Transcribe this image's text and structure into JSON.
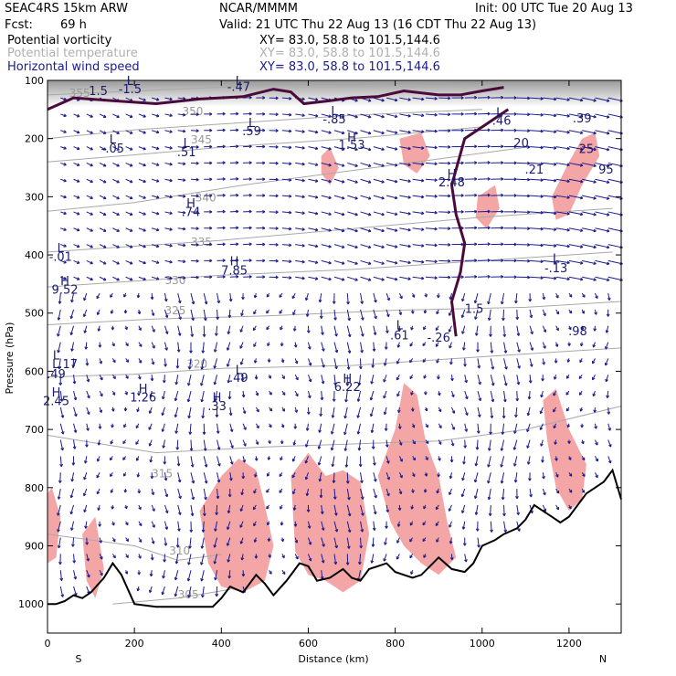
{
  "header": {
    "model": "SEAC4RS 15km ARW",
    "org": "NCAR/MMMM",
    "init": "Init: 00 UTC Tue 20 Aug 13",
    "fcst_label": "Fcst:",
    "fcst_value": "69 h",
    "valid": "Valid: 21 UTC Thu 22 Aug 13 (16 CDT Thu 22 Aug 13)"
  },
  "fields": [
    {
      "name": "Potential vorticity",
      "xy": "XY=  83.0, 58.8 to 101.5,144.6",
      "color": "#000000"
    },
    {
      "name": "Potential temperature",
      "xy": "XY=  83.0, 58.8 to 101.5,144.6",
      "color": "#b0b0b0"
    },
    {
      "name": "Horizontal wind speed",
      "xy": "XY=  83.0, 58.8 to 101.5,144.6",
      "color": "#1a1a8e"
    }
  ],
  "colors": {
    "pv_shade": "#f4a6a6",
    "wind": "#1a1a8e",
    "theta": "#a8a8a8",
    "pv_contour": "#4a0a3a",
    "terrain": "#000000"
  },
  "chart_data": {
    "type": "cross-section",
    "xlabel": "Distance (km)",
    "ylabel": "Pressure (hPa)",
    "x_ticks": [
      0,
      200,
      400,
      600,
      800,
      1000,
      1200
    ],
    "y_ticks": [
      100,
      200,
      300,
      400,
      500,
      600,
      700,
      800,
      900,
      1000
    ],
    "xlim": [
      0,
      1320
    ],
    "ylim": [
      1050,
      100
    ],
    "end_labels": {
      "left": "S",
      "right": "N"
    },
    "grid": false,
    "theta_contours": [
      {
        "label": "355",
        "pts": [
          [
            0,
            125
          ],
          [
            300,
            115
          ],
          [
            600,
            105
          ],
          [
            1000,
            100
          ]
        ],
        "lx": 50,
        "ly": 128
      },
      {
        "label": "350",
        "pts": [
          [
            0,
            200
          ],
          [
            200,
            185
          ],
          [
            400,
            175
          ],
          [
            700,
            160
          ],
          [
            1000,
            150
          ]
        ],
        "lx": 310,
        "ly": 160
      },
      {
        "label": "345",
        "pts": [
          [
            0,
            240
          ],
          [
            200,
            228
          ],
          [
            400,
            215
          ],
          [
            700,
            200
          ],
          [
            1000,
            180
          ]
        ],
        "lx": 330,
        "ly": 208
      },
      {
        "label": "340",
        "pts": [
          [
            0,
            325
          ],
          [
            200,
            310
          ],
          [
            450,
            280
          ],
          [
            700,
            255
          ],
          [
            900,
            235
          ],
          [
            1100,
            215
          ]
        ],
        "lx": 340,
        "ly": 308
      },
      {
        "label": "335",
        "pts": [
          [
            0,
            395
          ],
          [
            200,
            385
          ],
          [
            400,
            375
          ],
          [
            700,
            355
          ],
          [
            1000,
            335
          ],
          [
            1300,
            320
          ]
        ],
        "lx": 330,
        "ly": 384
      },
      {
        "label": "330",
        "pts": [
          [
            0,
            455
          ],
          [
            200,
            445
          ],
          [
            400,
            435
          ],
          [
            700,
            425
          ],
          [
            1000,
            410
          ],
          [
            1300,
            395
          ]
        ],
        "lx": 270,
        "ly": 450
      },
      {
        "label": "325",
        "pts": [
          [
            0,
            520
          ],
          [
            250,
            510
          ],
          [
            500,
            505
          ],
          [
            800,
            495
          ],
          [
            1100,
            490
          ],
          [
            1320,
            480
          ]
        ],
        "lx": 270,
        "ly": 502
      },
      {
        "label": "320",
        "pts": [
          [
            0,
            610
          ],
          [
            200,
            605
          ],
          [
            400,
            595
          ],
          [
            700,
            590
          ],
          [
            1000,
            575
          ],
          [
            1320,
            560
          ]
        ],
        "lx": 320,
        "ly": 594
      },
      {
        "label": "315",
        "pts": [
          [
            0,
            710
          ],
          [
            250,
            740
          ],
          [
            500,
            730
          ],
          [
            700,
            725
          ],
          [
            900,
            720
          ],
          [
            1100,
            700
          ],
          [
            1320,
            660
          ]
        ],
        "lx": 240,
        "ly": 782
      },
      {
        "label": "310",
        "pts": [
          [
            0,
            880
          ],
          [
            200,
            900
          ],
          [
            300,
            925
          ],
          [
            400,
            915
          ]
        ],
        "lx": 280,
        "ly": 915
      },
      {
        "label": "305",
        "pts": [
          [
            150,
            1000
          ],
          [
            300,
            990
          ],
          [
            420,
            975
          ]
        ],
        "lx": 300,
        "ly": 990
      }
    ],
    "pv_contours": [
      {
        "label": "1.5",
        "pts": [
          [
            0,
            150
          ],
          [
            60,
            130
          ],
          [
            150,
            135
          ],
          [
            250,
            140
          ],
          [
            350,
            132
          ],
          [
            450,
            128
          ],
          [
            520,
            115
          ],
          [
            560,
            120
          ],
          [
            590,
            140
          ],
          [
            650,
            135
          ],
          [
            700,
            130
          ],
          [
            760,
            128
          ],
          [
            820,
            118
          ],
          [
            900,
            125
          ],
          [
            950,
            125
          ],
          [
            1000,
            118
          ],
          [
            1050,
            112
          ]
        ],
        "lx": 95,
        "ly": 125
      },
      {
        "label": "1.5",
        "pts": [
          [
            1060,
            150
          ],
          [
            1020,
            170
          ],
          [
            960,
            200
          ],
          [
            930,
            280
          ],
          [
            940,
            330
          ],
          [
            960,
            380
          ],
          [
            950,
            430
          ],
          [
            930,
            480
          ],
          [
            940,
            540
          ]
        ],
        "lx": 960,
        "ly": 500
      }
    ],
    "pv_shading": [
      {
        "pts": [
          [
            0,
            810
          ],
          [
            10,
            800
          ],
          [
            30,
            850
          ],
          [
            20,
            920
          ],
          [
            0,
            930
          ]
        ]
      },
      {
        "pts": [
          [
            80,
            880
          ],
          [
            110,
            850
          ],
          [
            130,
            940
          ],
          [
            110,
            990
          ],
          [
            90,
            960
          ]
        ]
      },
      {
        "pts": [
          [
            350,
            840
          ],
          [
            400,
            780
          ],
          [
            440,
            750
          ],
          [
            480,
            770
          ],
          [
            500,
            830
          ],
          [
            520,
            900
          ],
          [
            500,
            960
          ],
          [
            450,
            980
          ],
          [
            400,
            970
          ],
          [
            370,
            930
          ]
        ]
      },
      {
        "pts": [
          [
            560,
            780
          ],
          [
            600,
            740
          ],
          [
            640,
            780
          ],
          [
            680,
            770
          ],
          [
            720,
            790
          ],
          [
            740,
            880
          ],
          [
            720,
            960
          ],
          [
            680,
            980
          ],
          [
            640,
            960
          ],
          [
            600,
            950
          ],
          [
            570,
            910
          ]
        ]
      },
      {
        "pts": [
          [
            760,
            780
          ],
          [
            800,
            700
          ],
          [
            820,
            620
          ],
          [
            850,
            640
          ],
          [
            870,
            720
          ],
          [
            900,
            780
          ],
          [
            920,
            860
          ],
          [
            940,
            920
          ],
          [
            900,
            950
          ],
          [
            860,
            930
          ],
          [
            820,
            900
          ],
          [
            790,
            860
          ]
        ]
      },
      {
        "pts": [
          [
            1140,
            650
          ],
          [
            1170,
            630
          ],
          [
            1200,
            700
          ],
          [
            1240,
            760
          ],
          [
            1230,
            820
          ],
          [
            1200,
            840
          ],
          [
            1170,
            800
          ],
          [
            1150,
            720
          ]
        ]
      },
      {
        "pts": [
          [
            630,
            230
          ],
          [
            650,
            215
          ],
          [
            670,
            250
          ],
          [
            650,
            280
          ],
          [
            630,
            260
          ]
        ]
      },
      {
        "pts": [
          [
            810,
            200
          ],
          [
            860,
            190
          ],
          [
            880,
            230
          ],
          [
            850,
            260
          ],
          [
            820,
            245
          ]
        ]
      },
      {
        "pts": [
          [
            990,
            300
          ],
          [
            1030,
            280
          ],
          [
            1040,
            320
          ],
          [
            1010,
            355
          ],
          [
            985,
            335
          ]
        ]
      },
      {
        "pts": [
          [
            1160,
            300
          ],
          [
            1200,
            240
          ],
          [
            1230,
            200
          ],
          [
            1260,
            190
          ],
          [
            1270,
            230
          ],
          [
            1230,
            280
          ],
          [
            1200,
            330
          ],
          [
            1170,
            340
          ]
        ]
      }
    ],
    "terrain": {
      "x": [
        0,
        20,
        40,
        60,
        80,
        100,
        130,
        150,
        170,
        200,
        250,
        300,
        350,
        380,
        400,
        420,
        450,
        480,
        500,
        520,
        550,
        580,
        600,
        620,
        650,
        680,
        700,
        720,
        740,
        760,
        780,
        800,
        820,
        840,
        860,
        880,
        900,
        930,
        960,
        980,
        1000,
        1030,
        1050,
        1080,
        1100,
        1120,
        1140,
        1160,
        1180,
        1200,
        1220,
        1240,
        1260,
        1280,
        1300,
        1320
      ],
      "p": [
        1000,
        1000,
        995,
        985,
        990,
        980,
        955,
        930,
        950,
        1000,
        1005,
        1005,
        1005,
        1005,
        990,
        970,
        980,
        950,
        965,
        985,
        960,
        930,
        935,
        960,
        955,
        940,
        955,
        960,
        940,
        935,
        930,
        945,
        950,
        955,
        950,
        935,
        920,
        940,
        945,
        930,
        900,
        890,
        880,
        870,
        855,
        830,
        840,
        850,
        860,
        850,
        830,
        810,
        800,
        790,
        770,
        820
      ]
    },
    "wind_region_top": 130,
    "labels": [
      {
        "t": "L",
        "x": 190,
        "y": 108
      },
      {
        "t": "-1.5",
        "x": 190,
        "y": 122
      },
      {
        "t": "L",
        "x": 440,
        "y": 108
      },
      {
        "t": "-.47",
        "x": 440,
        "y": 118
      },
      {
        "t": "L",
        "x": 660,
        "y": 160
      },
      {
        "t": "-.85",
        "x": 660,
        "y": 174
      },
      {
        "t": "L",
        "x": 1040,
        "y": 162
      },
      {
        "t": "-.46",
        "x": 1040,
        "y": 176
      },
      {
        "t": ".39",
        "x": 1230,
        "y": 172
      },
      {
        "t": "L",
        "x": 470,
        "y": 180
      },
      {
        "t": ".59",
        "x": 470,
        "y": 194
      },
      {
        "t": "L",
        "x": 150,
        "y": 208
      },
      {
        "t": "-.05",
        "x": 150,
        "y": 224
      },
      {
        "t": "L",
        "x": 320,
        "y": 215
      },
      {
        "t": ".51",
        "x": 320,
        "y": 230
      },
      {
        "t": "H",
        "x": 700,
        "y": 205
      },
      {
        "t": "1.53",
        "x": 700,
        "y": 218
      },
      {
        "t": "20",
        "x": 1090,
        "y": 215
      },
      {
        "t": "25",
        "x": 1240,
        "y": 225
      },
      {
        "t": ".21",
        "x": 1120,
        "y": 260
      },
      {
        "t": "95",
        "x": 1285,
        "y": 260
      },
      {
        "t": "H",
        "x": 930,
        "y": 268
      },
      {
        "t": "2.48",
        "x": 930,
        "y": 282
      },
      {
        "t": "H",
        "x": 330,
        "y": 318
      },
      {
        "t": ".74",
        "x": 330,
        "y": 333
      },
      {
        "t": "L",
        "x": 30,
        "y": 395
      },
      {
        "t": "-.01",
        "x": 30,
        "y": 410
      },
      {
        "t": "H",
        "x": 430,
        "y": 418
      },
      {
        "t": "7.85",
        "x": 430,
        "y": 434
      },
      {
        "t": "L",
        "x": 1170,
        "y": 413
      },
      {
        "t": "-.13",
        "x": 1170,
        "y": 430
      },
      {
        "t": "H",
        "x": 40,
        "y": 452
      },
      {
        "t": "9.52",
        "x": 40,
        "y": 467
      },
      {
        "t": "L",
        "x": 810,
        "y": 528
      },
      {
        "t": ".61",
        "x": 810,
        "y": 545
      },
      {
        "t": "-.26",
        "x": 900,
        "y": 549
      },
      {
        "t": ".98",
        "x": 1220,
        "y": 538
      },
      {
        "t": "L",
        "x": 20,
        "y": 580
      },
      {
        "t": "L.17",
        "x": 40,
        "y": 595
      },
      {
        "t": ".49",
        "x": 20,
        "y": 612
      },
      {
        "t": "L",
        "x": 440,
        "y": 605
      },
      {
        "t": ".49",
        "x": 440,
        "y": 618
      },
      {
        "t": "H",
        "x": 690,
        "y": 620
      },
      {
        "t": "6.22",
        "x": 690,
        "y": 634
      },
      {
        "t": "H",
        "x": 20,
        "y": 643
      },
      {
        "t": "2.45",
        "x": 20,
        "y": 658
      },
      {
        "t": "H",
        "x": 220,
        "y": 637
      },
      {
        "t": "1.26",
        "x": 220,
        "y": 652
      },
      {
        "t": "H",
        "x": 390,
        "y": 652
      },
      {
        "t": ".33",
        "x": 390,
        "y": 667
      }
    ]
  }
}
